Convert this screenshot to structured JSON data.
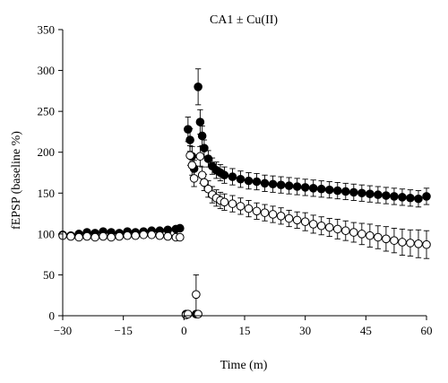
{
  "chart_data": {
    "type": "scatter",
    "title": "CA1 ± Cu(II)",
    "xlabel": "Time (m)",
    "ylabel": "fEPSP (baseline %)",
    "xlim": [
      -30,
      60
    ],
    "ylim": [
      0,
      350
    ],
    "xticks": [
      -30,
      -15,
      0,
      15,
      30,
      45,
      60
    ],
    "yticks": [
      0,
      50,
      100,
      150,
      200,
      250,
      300,
      350
    ],
    "xtick_labels": [
      "−30",
      "−15",
      "0",
      "15",
      "30",
      "45",
      "60"
    ],
    "ytick_labels": [
      "0",
      "50",
      "100",
      "150",
      "200",
      "250",
      "300",
      "350"
    ],
    "grid": false,
    "series": [
      {
        "marker": "filled-circle",
        "color": "#000000",
        "points": [
          {
            "x": -30,
            "y": 99,
            "err": 3
          },
          {
            "x": -28,
            "y": 98,
            "err": 3
          },
          {
            "x": -26,
            "y": 100,
            "err": 3
          },
          {
            "x": -24,
            "y": 102,
            "err": 3
          },
          {
            "x": -22,
            "y": 101,
            "err": 3
          },
          {
            "x": -20,
            "y": 103,
            "err": 3
          },
          {
            "x": -18,
            "y": 102,
            "err": 3
          },
          {
            "x": -16,
            "y": 101,
            "err": 3
          },
          {
            "x": -14,
            "y": 103,
            "err": 3
          },
          {
            "x": -12,
            "y": 102,
            "err": 3
          },
          {
            "x": -10,
            "y": 103,
            "err": 3
          },
          {
            "x": -8,
            "y": 104,
            "err": 3
          },
          {
            "x": -6,
            "y": 104,
            "err": 3
          },
          {
            "x": -4,
            "y": 105,
            "err": 3
          },
          {
            "x": -2,
            "y": 106,
            "err": 3
          },
          {
            "x": -1,
            "y": 107,
            "err": 3
          },
          {
            "x": 0.5,
            "y": 2,
            "err": 1
          },
          {
            "x": 1,
            "y": 228,
            "err": 15
          },
          {
            "x": 1.5,
            "y": 215,
            "err": 14
          },
          {
            "x": 2,
            "y": 195,
            "err": 12
          },
          {
            "x": 2.5,
            "y": 180,
            "err": 10
          },
          {
            "x": 3,
            "y": 2,
            "err": 1
          },
          {
            "x": 3.5,
            "y": 280,
            "err": 22
          },
          {
            "x": 4,
            "y": 237,
            "err": 15
          },
          {
            "x": 4.5,
            "y": 220,
            "err": 12
          },
          {
            "x": 5,
            "y": 205,
            "err": 10
          },
          {
            "x": 6,
            "y": 192,
            "err": 10
          },
          {
            "x": 7,
            "y": 183,
            "err": 10
          },
          {
            "x": 8,
            "y": 178,
            "err": 10
          },
          {
            "x": 9,
            "y": 175,
            "err": 10
          },
          {
            "x": 10,
            "y": 172,
            "err": 10
          },
          {
            "x": 12,
            "y": 170,
            "err": 10
          },
          {
            "x": 14,
            "y": 167,
            "err": 10
          },
          {
            "x": 16,
            "y": 165,
            "err": 10
          },
          {
            "x": 18,
            "y": 164,
            "err": 10
          },
          {
            "x": 20,
            "y": 162,
            "err": 10
          },
          {
            "x": 22,
            "y": 161,
            "err": 10
          },
          {
            "x": 24,
            "y": 160,
            "err": 10
          },
          {
            "x": 26,
            "y": 159,
            "err": 10
          },
          {
            "x": 28,
            "y": 158,
            "err": 10
          },
          {
            "x": 30,
            "y": 157,
            "err": 10
          },
          {
            "x": 32,
            "y": 156,
            "err": 10
          },
          {
            "x": 34,
            "y": 155,
            "err": 10
          },
          {
            "x": 36,
            "y": 154,
            "err": 10
          },
          {
            "x": 38,
            "y": 153,
            "err": 10
          },
          {
            "x": 40,
            "y": 152,
            "err": 10
          },
          {
            "x": 42,
            "y": 151,
            "err": 10
          },
          {
            "x": 44,
            "y": 150,
            "err": 10
          },
          {
            "x": 46,
            "y": 149,
            "err": 10
          },
          {
            "x": 48,
            "y": 148,
            "err": 10
          },
          {
            "x": 50,
            "y": 147,
            "err": 10
          },
          {
            "x": 52,
            "y": 146,
            "err": 10
          },
          {
            "x": 54,
            "y": 145,
            "err": 10
          },
          {
            "x": 56,
            "y": 144,
            "err": 10
          },
          {
            "x": 58,
            "y": 143,
            "err": 10
          },
          {
            "x": 60,
            "y": 146,
            "err": 10
          }
        ]
      },
      {
        "marker": "open-circle",
        "color": "#000000",
        "points": [
          {
            "x": -30,
            "y": 98,
            "err": 3
          },
          {
            "x": -28,
            "y": 97,
            "err": 3
          },
          {
            "x": -26,
            "y": 96,
            "err": 3
          },
          {
            "x": -24,
            "y": 97,
            "err": 3
          },
          {
            "x": -22,
            "y": 96,
            "err": 3
          },
          {
            "x": -20,
            "y": 97,
            "err": 3
          },
          {
            "x": -18,
            "y": 96,
            "err": 3
          },
          {
            "x": -16,
            "y": 97,
            "err": 3
          },
          {
            "x": -14,
            "y": 98,
            "err": 3
          },
          {
            "x": -12,
            "y": 98,
            "err": 3
          },
          {
            "x": -10,
            "y": 99,
            "err": 3
          },
          {
            "x": -8,
            "y": 99,
            "err": 3
          },
          {
            "x": -6,
            "y": 98,
            "err": 3
          },
          {
            "x": -4,
            "y": 97,
            "err": 3
          },
          {
            "x": -2,
            "y": 96,
            "err": 3
          },
          {
            "x": -1,
            "y": 96,
            "err": 3
          },
          {
            "x": 0.5,
            "y": 1,
            "err": 1
          },
          {
            "x": 1,
            "y": 2,
            "err": 1
          },
          {
            "x": 1.5,
            "y": 196,
            "err": 12
          },
          {
            "x": 2,
            "y": 184,
            "err": 12
          },
          {
            "x": 2.5,
            "y": 168,
            "err": 10
          },
          {
            "x": 3,
            "y": 26,
            "err": 24
          },
          {
            "x": 3.5,
            "y": 2,
            "err": 1
          },
          {
            "x": 4,
            "y": 195,
            "err": 12
          },
          {
            "x": 4.5,
            "y": 172,
            "err": 10
          },
          {
            "x": 5,
            "y": 163,
            "err": 10
          },
          {
            "x": 6,
            "y": 155,
            "err": 10
          },
          {
            "x": 7,
            "y": 148,
            "err": 10
          },
          {
            "x": 8,
            "y": 144,
            "err": 10
          },
          {
            "x": 9,
            "y": 141,
            "err": 10
          },
          {
            "x": 10,
            "y": 139,
            "err": 10
          },
          {
            "x": 12,
            "y": 137,
            "err": 10
          },
          {
            "x": 14,
            "y": 134,
            "err": 10
          },
          {
            "x": 16,
            "y": 131,
            "err": 10
          },
          {
            "x": 18,
            "y": 128,
            "err": 10
          },
          {
            "x": 20,
            "y": 126,
            "err": 10
          },
          {
            "x": 22,
            "y": 124,
            "err": 10
          },
          {
            "x": 24,
            "y": 122,
            "err": 10
          },
          {
            "x": 26,
            "y": 119,
            "err": 10
          },
          {
            "x": 28,
            "y": 117,
            "err": 10
          },
          {
            "x": 30,
            "y": 115,
            "err": 11
          },
          {
            "x": 32,
            "y": 112,
            "err": 11
          },
          {
            "x": 34,
            "y": 110,
            "err": 11
          },
          {
            "x": 36,
            "y": 108,
            "err": 11
          },
          {
            "x": 38,
            "y": 106,
            "err": 12
          },
          {
            "x": 40,
            "y": 104,
            "err": 12
          },
          {
            "x": 42,
            "y": 102,
            "err": 12
          },
          {
            "x": 44,
            "y": 100,
            "err": 13
          },
          {
            "x": 46,
            "y": 98,
            "err": 14
          },
          {
            "x": 48,
            "y": 96,
            "err": 14
          },
          {
            "x": 50,
            "y": 94,
            "err": 15
          },
          {
            "x": 52,
            "y": 92,
            "err": 15
          },
          {
            "x": 54,
            "y": 90,
            "err": 16
          },
          {
            "x": 56,
            "y": 89,
            "err": 16
          },
          {
            "x": 58,
            "y": 88,
            "err": 17
          },
          {
            "x": 60,
            "y": 87,
            "err": 17
          }
        ]
      }
    ]
  }
}
